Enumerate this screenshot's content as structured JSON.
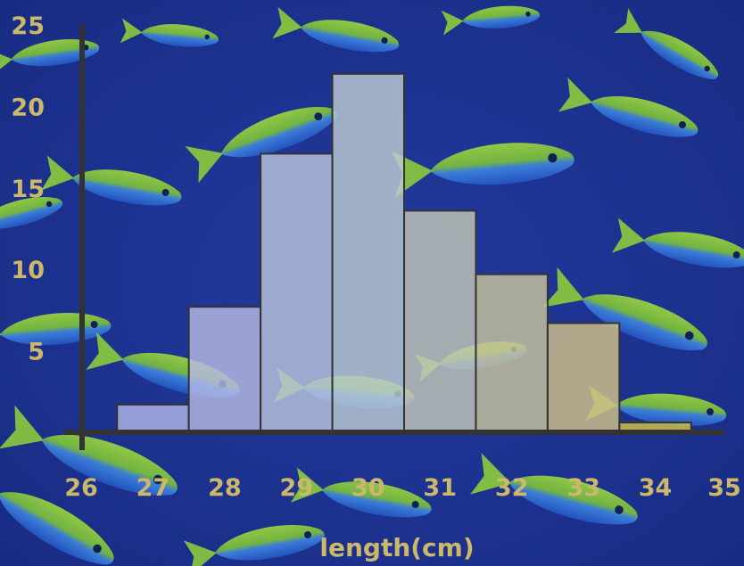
{
  "chart_data": {
    "type": "bar",
    "title": "",
    "xlabel": "length(cm)",
    "ylabel": "",
    "x_ticks": [
      26,
      27,
      28,
      29,
      30,
      31,
      32,
      33,
      34,
      35
    ],
    "y_ticks": [
      5,
      10,
      15,
      20,
      25
    ],
    "xlim": [
      26,
      35
    ],
    "ylim": [
      0,
      25
    ],
    "bins": [
      {
        "start": 26.5,
        "end": 27.5,
        "value": 1.7
      },
      {
        "start": 27.5,
        "end": 28.5,
        "value": 7.7
      },
      {
        "start": 28.5,
        "end": 29.5,
        "value": 17.1
      },
      {
        "start": 29.5,
        "end": 30.5,
        "value": 22
      },
      {
        "start": 30.5,
        "end": 31.5,
        "value": 13.6
      },
      {
        "start": 31.5,
        "end": 32.5,
        "value": 9.7
      },
      {
        "start": 32.5,
        "end": 33.5,
        "value": 6.7
      },
      {
        "start": 33.5,
        "end": 34.5,
        "value": 0.6
      }
    ],
    "bar_colors": [
      "#b0b4e6",
      "#b4b9e3",
      "#b8c4dc",
      "#bccbd2",
      "#c3c7b7",
      "#c9c49e",
      "#cfc28a",
      "#d6c34a"
    ],
    "background": "photo of blue-and-yellow fish school",
    "grid": false,
    "legend": "none"
  },
  "colors": {
    "water": "#1c2f8c",
    "fish_green": "#8ccc3c",
    "fish_blue": "#2f6fd6",
    "axis": "#333333",
    "label": "#cbb86a"
  }
}
